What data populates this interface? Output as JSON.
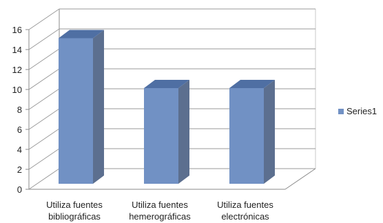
{
  "chart_data": {
    "type": "bar",
    "categories": [
      [
        "Utiliza fuentes",
        "bibliográficas"
      ],
      [
        "Utiliza fuentes",
        "hemerográficas"
      ],
      [
        "Utiliza fuentes",
        "electrónicas"
      ]
    ],
    "series": [
      {
        "name": "Series1",
        "values": [
          15,
          10,
          10
        ]
      }
    ],
    "yticks": [
      "0",
      "2",
      "4",
      "6",
      "8",
      "10",
      "12",
      "14",
      "16"
    ],
    "ylim": [
      0,
      16
    ],
    "grid": true,
    "legend_position": "right",
    "colors": {
      "bar_front": "#7191c4",
      "bar_side": "#5c6f8f",
      "bar_top": "#4f6fa3",
      "grid": "#9a9a9a"
    }
  }
}
